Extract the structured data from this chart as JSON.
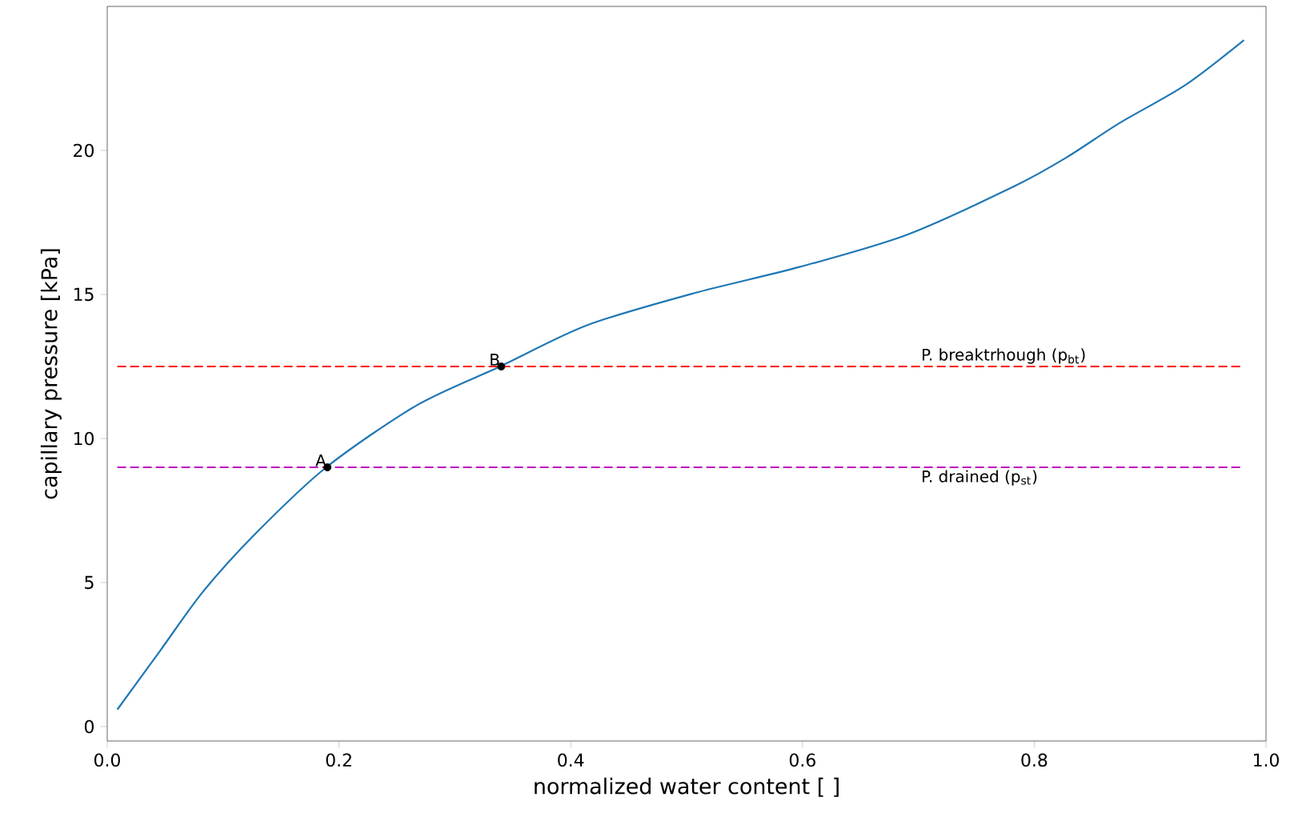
{
  "chart_data": {
    "type": "line",
    "xlabel": "normalized water content [ ]",
    "ylabel": "capillary pressure [kPa]",
    "series": [
      {
        "color": "#1f77b4",
        "x": [
          0.0087,
          0.0456,
          0.0824,
          0.128,
          0.189,
          0.267,
          0.339,
          0.414,
          0.506,
          0.598,
          0.69,
          0.782,
          0.828,
          0.874,
          0.93,
          0.981
        ],
        "values": [
          0.59,
          2.63,
          4.67,
          6.7,
          9.0,
          11.15,
          12.5,
          13.93,
          15.04,
          15.96,
          17.07,
          18.74,
          19.76,
          20.96,
          22.26,
          23.83
        ]
      },
      {
        "type": "scatter",
        "color": "#000000",
        "marker": "circle",
        "x": [
          0.19,
          0.34
        ],
        "values": [
          9.0,
          12.5
        ]
      }
    ],
    "ref_lines": [
      {
        "axis": "y",
        "value": 12.5,
        "label": "P. breaktrhough (p$_{bt}$)",
        "color": "#ff0000",
        "line_style": "dashed"
      },
      {
        "axis": "y",
        "value": 9.0,
        "label": "P. drained (p$_{st}$)",
        "color": "#bf00bf",
        "line_style": "dashed"
      }
    ],
    "annotations": [
      {
        "text": "A",
        "x": 0.19,
        "y": 9.0
      },
      {
        "text": "B",
        "x": 0.34,
        "y": 12.5
      }
    ],
    "xlim": [
      0,
      1
    ],
    "ylim": [
      -0.5,
      25
    ],
    "xticks": [
      {
        "value": 0,
        "label": "0.0"
      },
      {
        "value": 0.2,
        "label": "0.2"
      },
      {
        "value": 0.4,
        "label": "0.4"
      },
      {
        "value": 0.6,
        "label": "0.6"
      },
      {
        "value": 0.8,
        "label": "0.8"
      },
      {
        "value": 1,
        "label": "1.0"
      }
    ],
    "yticks": [
      0,
      5,
      10,
      15,
      20
    ],
    "marker": "none"
  }
}
